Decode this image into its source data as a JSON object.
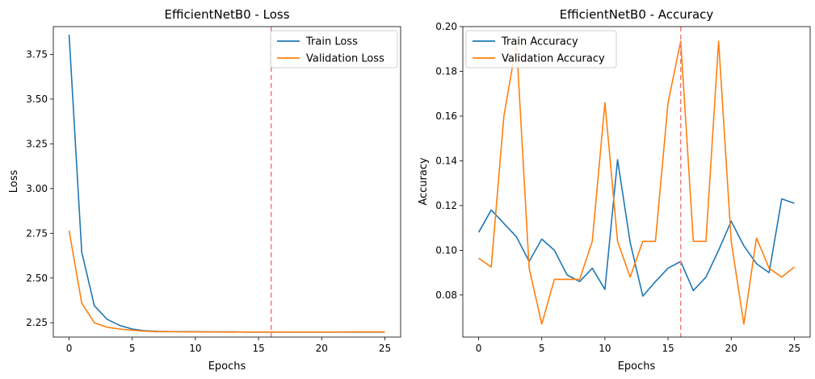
{
  "colors": {
    "train": "#1f77b4",
    "validation": "#ff7f0e",
    "marker": "#f08080"
  },
  "chart_data": [
    {
      "type": "line",
      "title": "EfficientNetB0 - Loss",
      "xlabel": "Epochs",
      "ylabel": "Loss",
      "xlim": [
        -1.25,
        26.25
      ],
      "ylim": [
        2.17,
        3.905
      ],
      "xticks": [
        0,
        5,
        10,
        15,
        20,
        25
      ],
      "xtick_labels": [
        "0",
        "5",
        "10",
        "15",
        "20",
        "25"
      ],
      "yticks": [
        2.25,
        2.5,
        2.75,
        3.0,
        3.25,
        3.5,
        3.75
      ],
      "ytick_labels": [
        "2.25",
        "2.50",
        "2.75",
        "3.00",
        "3.25",
        "3.50",
        "3.75"
      ],
      "vline_x": 16,
      "legend_position": "upper-right",
      "x": [
        0,
        1,
        2,
        3,
        4,
        5,
        6,
        7,
        8,
        9,
        10,
        11,
        12,
        13,
        14,
        15,
        16,
        17,
        18,
        19,
        20,
        21,
        22,
        23,
        24,
        25
      ],
      "series": [
        {
          "name": "Train Loss",
          "values": [
            3.86,
            2.645,
            2.345,
            2.27,
            2.235,
            2.215,
            2.205,
            2.202,
            2.201,
            2.2,
            2.2,
            2.199,
            2.199,
            2.199,
            2.198,
            2.198,
            2.198,
            2.198,
            2.198,
            2.198,
            2.198,
            2.198,
            2.198,
            2.198,
            2.198,
            2.198
          ]
        },
        {
          "name": "Validation Loss",
          "values": [
            2.765,
            2.36,
            2.25,
            2.225,
            2.215,
            2.208,
            2.203,
            2.2,
            2.2,
            2.199,
            2.199,
            2.199,
            2.198,
            2.198,
            2.198,
            2.198,
            2.198,
            2.198,
            2.198,
            2.198,
            2.198,
            2.198,
            2.199,
            2.199,
            2.199,
            2.199
          ]
        }
      ]
    },
    {
      "type": "line",
      "title": "EfficientNetB0 - Accuracy",
      "xlabel": "Epochs",
      "ylabel": "Accuracy",
      "xlim": [
        -1.25,
        26.25
      ],
      "ylim": [
        0.0612,
        0.2
      ],
      "xticks": [
        0,
        5,
        10,
        15,
        20,
        25
      ],
      "xtick_labels": [
        "0",
        "5",
        "10",
        "15",
        "20",
        "25"
      ],
      "yticks": [
        0.08,
        0.1,
        0.12,
        0.14,
        0.16,
        0.18,
        0.2
      ],
      "ytick_labels": [
        "0.08",
        "0.10",
        "0.12",
        "0.14",
        "0.16",
        "0.18",
        "0.20"
      ],
      "vline_x": 16,
      "legend_position": "upper-left",
      "x": [
        0,
        1,
        2,
        3,
        4,
        5,
        6,
        7,
        8,
        9,
        10,
        11,
        12,
        13,
        14,
        15,
        16,
        17,
        18,
        19,
        20,
        21,
        22,
        23,
        24,
        25
      ],
      "series": [
        {
          "name": "Train Accuracy",
          "values": [
            0.108,
            0.118,
            0.112,
            0.106,
            0.095,
            0.105,
            0.1,
            0.089,
            0.086,
            0.092,
            0.0825,
            0.1405,
            0.1035,
            0.0795,
            0.086,
            0.092,
            0.095,
            0.082,
            0.088,
            0.1,
            0.113,
            0.102,
            0.094,
            0.09,
            0.123,
            0.121
          ]
        },
        {
          "name": "Validation Accuracy",
          "values": [
            0.0965,
            0.0925,
            0.16,
            0.1925,
            0.092,
            0.067,
            0.087,
            0.087,
            0.087,
            0.104,
            0.166,
            0.104,
            0.088,
            0.104,
            0.104,
            0.166,
            0.1935,
            0.104,
            0.104,
            0.1935,
            0.104,
            0.067,
            0.1055,
            0.092,
            0.088,
            0.0925
          ]
        }
      ]
    }
  ]
}
